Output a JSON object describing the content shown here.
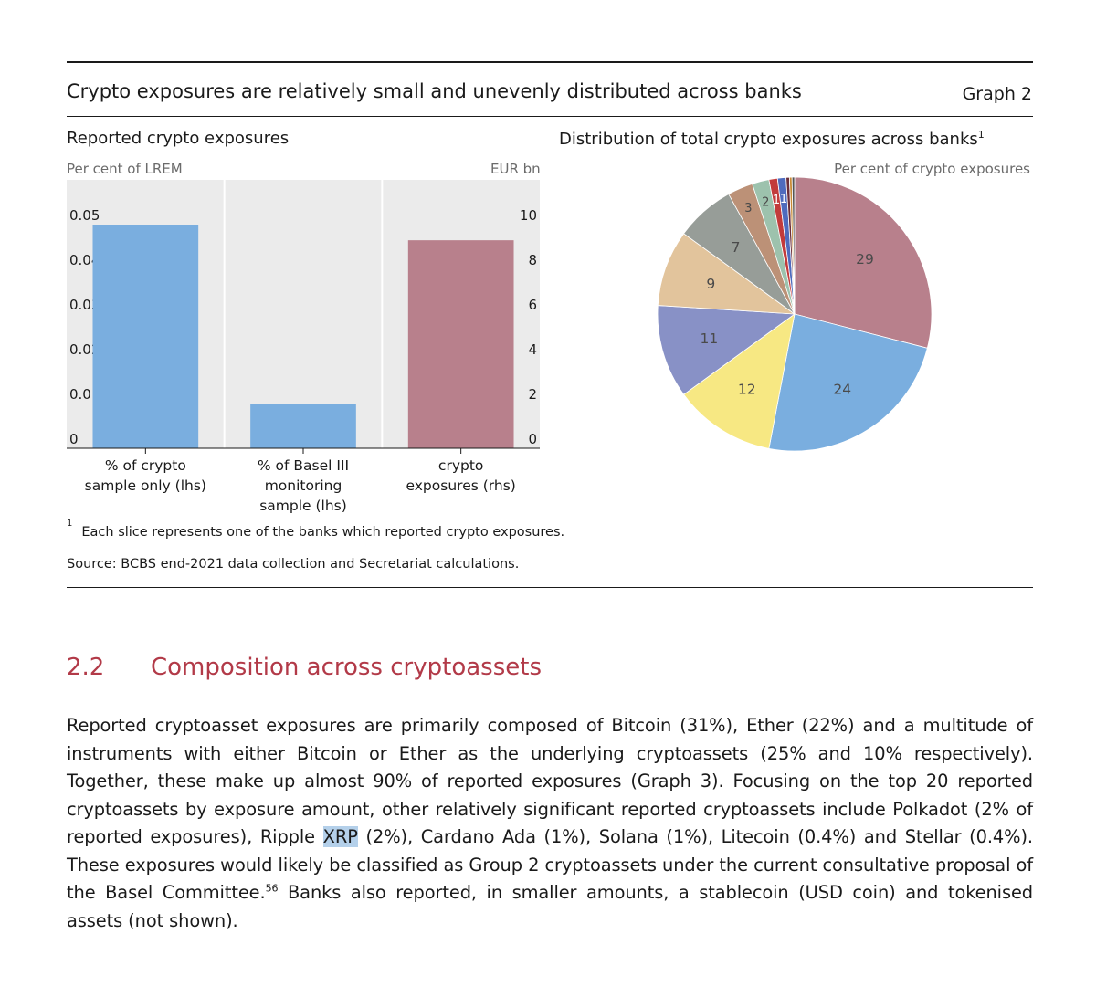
{
  "header": {
    "title": "Crypto exposures are relatively small and unevenly distributed across banks",
    "graph_label": "Graph 2"
  },
  "panels": {
    "left": {
      "title": "Reported crypto exposures",
      "lhs_unit": "Per cent of LREM",
      "rhs_unit": "EUR bn"
    },
    "right": {
      "title": "Distribution of total crypto exposures across banks",
      "title_sup": "1",
      "unit": "Per cent of crypto exposures"
    }
  },
  "chart_data": [
    {
      "type": "bar",
      "title": "Reported crypto exposures",
      "categories": [
        [
          "% of crypto",
          "sample only (lhs)"
        ],
        [
          "% of Basel III",
          "monitoring",
          "sample (lhs)"
        ],
        [
          "crypto",
          "exposures (rhs)"
        ]
      ],
      "values": [
        0.05,
        0.01,
        9.3
      ],
      "axis": [
        "lhs",
        "lhs",
        "rhs"
      ],
      "bar_colors": [
        "#7aaedf",
        "#7aaedf",
        "#b8808c"
      ],
      "ylim_lhs": [
        0,
        0.06
      ],
      "ylim_rhs": [
        0,
        12
      ],
      "lhs_ticks": [
        "0",
        "0.01",
        "0.02",
        "0.03",
        "0.04",
        "0.05"
      ],
      "rhs_ticks": [
        "0",
        "2",
        "4",
        "6",
        "8",
        "10"
      ],
      "ylabel_lhs": "Per cent of LREM",
      "ylabel_rhs": "EUR bn",
      "grid": "vertical"
    },
    {
      "type": "pie",
      "title": "Distribution of total crypto exposures across banks",
      "unit": "Per cent of crypto exposures",
      "slices": [
        {
          "value": 29,
          "label": "29",
          "color": "#b8808c"
        },
        {
          "value": 24,
          "label": "24",
          "color": "#7aaedf"
        },
        {
          "value": 12,
          "label": "12",
          "color": "#f7e883"
        },
        {
          "value": 11,
          "label": "11",
          "color": "#8891c6"
        },
        {
          "value": 9,
          "label": "9",
          "color": "#e2c49c"
        },
        {
          "value": 7,
          "label": "7",
          "color": "#979d98"
        },
        {
          "value": 3,
          "label": "3",
          "color": "#bc9177"
        },
        {
          "value": 2,
          "label": "2",
          "color": "#9dc2ad"
        },
        {
          "value": 1,
          "label": "1",
          "color": "#c23b3b"
        },
        {
          "value": 1,
          "label": "1",
          "color": "#4f6bbd"
        },
        {
          "value": 0.4,
          "label": "",
          "color": "#6b2e3a"
        },
        {
          "value": 0.3,
          "label": "",
          "color": "#c98b35"
        },
        {
          "value": 0.3,
          "label": "",
          "color": "#555555"
        }
      ]
    }
  ],
  "notes": {
    "footnote_marker": "1",
    "footnote": "Each slice represents one of the banks which reported crypto exposures.",
    "source": "Source: BCBS end-2021 data collection and Secretariat calculations."
  },
  "section": {
    "number": "2.2",
    "title": "Composition across cryptoassets"
  },
  "body": {
    "before_highlight": "Reported cryptoasset exposures are primarily composed of Bitcoin (31%), Ether (22%) and a multitude of instruments with either Bitcoin or Ether as the underlying cryptoassets (25% and 10% respectively). Together, these make up almost 90% of reported exposures (Graph 3). Focusing on the top 20 reported cryptoassets by exposure amount, other relatively significant reported cryptoassets include Polkadot (2% of reported exposures), Ripple ",
    "highlight": "XRP",
    "after_highlight": " (2%), Cardano Ada (1%), Solana (1%), Litecoin (0.4%) and Stellar (0.4%). These exposures would likely be classified as Group 2 cryptoassets under the current consultative proposal of the Basel Committee.",
    "footnote_ref": "56",
    "ending": " Banks also reported, in smaller amounts, a stablecoin (USD coin) and tokenised assets (not shown)."
  }
}
